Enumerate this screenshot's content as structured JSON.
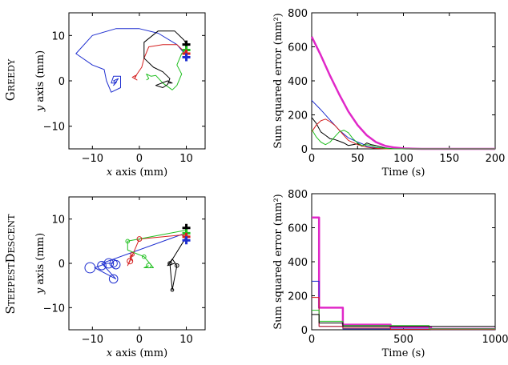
{
  "rows": [
    {
      "label": "Greedy",
      "label_first": "G",
      "label_rest": "REEDY"
    },
    {
      "label": "SteepestDescent",
      "label_first": "S",
      "label_rest": "TEEPEST",
      "label_first2": "D",
      "label_rest2": "ESCENT"
    }
  ],
  "colors": {
    "blue": "#1f2fd0",
    "red": "#d42020",
    "green": "#22c022",
    "black": "#000000",
    "magenta": "#e028c8"
  },
  "chart_data": [
    {
      "id": "greedy-trajectories",
      "type": "line",
      "xlabel_var": "x",
      "xlabel_rest": " axis (mm)",
      "ylabel_var": "y",
      "ylabel_rest": " axis (mm)",
      "xlim": [
        -15,
        14
      ],
      "ylim": [
        -15,
        15
      ],
      "xticks": [
        -10,
        0,
        10
      ],
      "yticks": [
        -10,
        0,
        10
      ],
      "xtick_labels": [
        "−10",
        "0",
        "10"
      ],
      "ytick_labels": [
        "10",
        "0",
        "−10"
      ],
      "series": [
        {
          "color": "blue",
          "points": [
            [
              10,
              5.5
            ],
            [
              8,
              8
            ],
            [
              4,
              10.5
            ],
            [
              0,
              11.5
            ],
            [
              -5,
              11.5
            ],
            [
              -10,
              10
            ],
            [
              -13.5,
              6
            ],
            [
              -10,
              3.5
            ],
            [
              -7.5,
              2.5
            ],
            [
              -7,
              0
            ],
            [
              -6,
              -2.5
            ],
            [
              -4,
              -1.5
            ],
            [
              -4,
              1
            ],
            [
              -5.5,
              1
            ],
            [
              -6,
              -0.5
            ],
            [
              -5,
              -0.5
            ],
            [
              -5.5,
              0
            ],
            [
              -4.5,
              0.5
            ],
            [
              -5.5,
              -1
            ],
            [
              -4.8,
              -0.2
            ]
          ]
        },
        {
          "color": "red",
          "points": [
            [
              10,
              6
            ],
            [
              8,
              8
            ],
            [
              5,
              8
            ],
            [
              2,
              7.5
            ],
            [
              1,
              5
            ],
            [
              0.5,
              3
            ],
            [
              -0.5,
              1.5
            ],
            [
              -1,
              0.5
            ],
            [
              -0.5,
              0.2
            ],
            [
              -1.5,
              0.8
            ],
            [
              -0.8,
              1.2
            ],
            [
              -1,
              0.5
            ]
          ]
        },
        {
          "color": "green",
          "points": [
            [
              10,
              7
            ],
            [
              9,
              6
            ],
            [
              8,
              3.5
            ],
            [
              9,
              1.5
            ],
            [
              8,
              -1
            ],
            [
              7,
              -2
            ],
            [
              5,
              -0.5
            ],
            [
              3.5,
              1.2
            ],
            [
              2.5,
              1
            ],
            [
              1.5,
              1.5
            ],
            [
              2,
              0.5
            ],
            [
              1.5,
              0.2
            ]
          ]
        },
        {
          "color": "black",
          "points": [
            [
              10,
              8
            ],
            [
              9.5,
              9
            ],
            [
              7.5,
              11
            ],
            [
              4,
              11
            ],
            [
              1,
              8.5
            ],
            [
              1,
              5
            ],
            [
              3,
              3
            ],
            [
              5,
              2
            ],
            [
              6.5,
              0.5
            ],
            [
              6,
              -0.8
            ],
            [
              5,
              -1.5
            ],
            [
              3.5,
              -1
            ],
            [
              6,
              0
            ],
            [
              7,
              -0.5
            ],
            [
              6.2,
              -0.5
            ]
          ]
        }
      ],
      "start_markers": [
        {
          "color": "black",
          "x": 10,
          "y": 8
        },
        {
          "color": "green",
          "x": 10,
          "y": 6.8
        },
        {
          "color": "red",
          "x": 10,
          "y": 6
        },
        {
          "color": "blue",
          "x": 10,
          "y": 5.2
        }
      ]
    },
    {
      "id": "greedy-error",
      "type": "line",
      "xlabel": "Time (s)",
      "ylabel": "Sum squared error (mm²)",
      "xlim": [
        0,
        200
      ],
      "ylim": [
        0,
        800
      ],
      "xticks": [
        0,
        50,
        100,
        150,
        200
      ],
      "yticks": [
        0,
        200,
        400,
        600,
        800
      ],
      "series": [
        {
          "color": "magenta",
          "width": 2.5,
          "points": [
            [
              0,
              660
            ],
            [
              10,
              550
            ],
            [
              20,
              430
            ],
            [
              30,
              320
            ],
            [
              40,
              220
            ],
            [
              50,
              140
            ],
            [
              60,
              80
            ],
            [
              70,
              40
            ],
            [
              80,
              18
            ],
            [
              90,
              8
            ],
            [
              100,
              3
            ],
            [
              110,
              1
            ],
            [
              120,
              0
            ],
            [
              200,
              0
            ]
          ]
        },
        {
          "color": "blue",
          "points": [
            [
              0,
              285
            ],
            [
              10,
              230
            ],
            [
              20,
              170
            ],
            [
              30,
              110
            ],
            [
              40,
              65
            ],
            [
              50,
              40
            ],
            [
              55,
              30
            ],
            [
              60,
              15
            ],
            [
              70,
              5
            ],
            [
              80,
              1
            ],
            [
              90,
              0
            ],
            [
              200,
              0
            ]
          ]
        },
        {
          "color": "black",
          "points": [
            [
              0,
              185
            ],
            [
              5,
              150
            ],
            [
              10,
              100
            ],
            [
              15,
              80
            ],
            [
              20,
              60
            ],
            [
              25,
              55
            ],
            [
              30,
              45
            ],
            [
              35,
              35
            ],
            [
              40,
              20
            ],
            [
              45,
              25
            ],
            [
              50,
              30
            ],
            [
              55,
              15
            ],
            [
              60,
              35
            ],
            [
              65,
              25
            ],
            [
              70,
              20
            ],
            [
              80,
              5
            ],
            [
              90,
              0
            ],
            [
              200,
              0
            ]
          ]
        },
        {
          "color": "red",
          "points": [
            [
              0,
              100
            ],
            [
              5,
              140
            ],
            [
              10,
              165
            ],
            [
              15,
              175
            ],
            [
              20,
              160
            ],
            [
              25,
              140
            ],
            [
              30,
              110
            ],
            [
              35,
              80
            ],
            [
              40,
              50
            ],
            [
              50,
              25
            ],
            [
              60,
              10
            ],
            [
              70,
              3
            ],
            [
              80,
              0
            ],
            [
              200,
              0
            ]
          ]
        },
        {
          "color": "green",
          "points": [
            [
              0,
              115
            ],
            [
              5,
              70
            ],
            [
              10,
              40
            ],
            [
              15,
              25
            ],
            [
              20,
              40
            ],
            [
              25,
              70
            ],
            [
              30,
              100
            ],
            [
              35,
              110
            ],
            [
              40,
              95
            ],
            [
              45,
              60
            ],
            [
              50,
              35
            ],
            [
              55,
              20
            ],
            [
              60,
              25
            ],
            [
              65,
              20
            ],
            [
              70,
              10
            ],
            [
              80,
              3
            ],
            [
              90,
              0
            ],
            [
              200,
              0
            ]
          ]
        }
      ]
    },
    {
      "id": "steepest-trajectories",
      "type": "line",
      "xlabel_var": "x",
      "xlabel_rest": " axis (mm)",
      "ylabel_var": "y",
      "ylabel_rest": " axis (mm)",
      "xlim": [
        -15,
        14
      ],
      "ylim": [
        -15,
        15
      ],
      "xticks": [
        -10,
        0,
        10
      ],
      "yticks": [
        -10,
        0,
        10
      ],
      "xtick_labels": [
        "−10",
        "0",
        "10"
      ],
      "ytick_labels": [
        "10",
        "0",
        "−10"
      ],
      "series": [
        {
          "color": "blue",
          "points": [
            [
              10,
              5.5
            ],
            [
              9,
              6.5
            ],
            [
              -8,
              0
            ],
            [
              -5,
              -3.5
            ],
            [
              -9.5,
              -1
            ],
            [
              -7,
              0
            ],
            [
              -6.5,
              0
            ],
            [
              -5.5,
              0
            ]
          ]
        },
        {
          "color": "red",
          "points": [
            [
              10,
              6.5
            ],
            [
              0,
              5.5
            ],
            [
              -2,
              0.5
            ],
            [
              -2.5,
              -0.5
            ],
            [
              -1.5,
              2
            ],
            [
              -2,
              1.5
            ],
            [
              -1.5,
              0.5
            ]
          ]
        },
        {
          "color": "green",
          "points": [
            [
              10,
              7.5
            ],
            [
              -2.5,
              5
            ],
            [
              -2.5,
              3
            ],
            [
              1,
              1.5
            ],
            [
              3,
              -1
            ],
            [
              1,
              -1
            ],
            [
              2,
              -0.5
            ]
          ]
        },
        {
          "color": "black",
          "points": [
            [
              10,
              8
            ],
            [
              10,
              6
            ],
            [
              6.5,
              0
            ],
            [
              7,
              -6
            ],
            [
              8,
              -0.5
            ],
            [
              7,
              1
            ],
            [
              6,
              -0.5
            ],
            [
              7.5,
              0
            ]
          ]
        }
      ],
      "circles": [
        {
          "color": "blue",
          "x": -10.5,
          "y": -1,
          "r": 1.1
        },
        {
          "color": "blue",
          "x": -8,
          "y": -0.5,
          "r": 0.9
        },
        {
          "color": "blue",
          "x": -6.5,
          "y": 0,
          "r": 1.0
        },
        {
          "color": "blue",
          "x": -5.5,
          "y": 0,
          "r": 0.8
        },
        {
          "color": "blue",
          "x": -5,
          "y": -0.3,
          "r": 0.9
        },
        {
          "color": "blue",
          "x": -5.5,
          "y": -3.5,
          "r": 0.9
        },
        {
          "color": "red",
          "x": 0,
          "y": 5.5,
          "r": 0.5
        },
        {
          "color": "red",
          "x": -2,
          "y": 0.5,
          "r": 0.6
        },
        {
          "color": "red",
          "x": -1.5,
          "y": 2,
          "r": 0.4
        },
        {
          "color": "green",
          "x": -2.5,
          "y": 5,
          "r": 0.4
        },
        {
          "color": "green",
          "x": 1,
          "y": 1.5,
          "r": 0.4
        },
        {
          "color": "green",
          "x": 2,
          "y": -0.5,
          "r": 0.5
        },
        {
          "color": "black",
          "x": 6.5,
          "y": 0,
          "r": 0.4
        },
        {
          "color": "black",
          "x": 7,
          "y": -6,
          "r": 0.3
        },
        {
          "color": "black",
          "x": 8,
          "y": -0.5,
          "r": 0.4
        }
      ],
      "start_markers": [
        {
          "color": "black",
          "x": 10,
          "y": 8
        },
        {
          "color": "green",
          "x": 10,
          "y": 6.8
        },
        {
          "color": "red",
          "x": 10,
          "y": 6
        },
        {
          "color": "blue",
          "x": 10,
          "y": 5.2
        }
      ]
    },
    {
      "id": "steepest-error",
      "type": "line",
      "xlabel": "Time (s)",
      "ylabel": "Sum squared error (mm²)",
      "xlim": [
        0,
        1000
      ],
      "ylim": [
        0,
        800
      ],
      "xticks": [
        0,
        500,
        1000
      ],
      "yticks": [
        0,
        200,
        400,
        600,
        800
      ],
      "series": [
        {
          "color": "magenta",
          "width": 2.5,
          "points": [
            [
              0,
              660
            ],
            [
              40,
              660
            ],
            [
              40,
              130
            ],
            [
              170,
              130
            ],
            [
              170,
              30
            ],
            [
              430,
              30
            ],
            [
              430,
              15
            ],
            [
              650,
              15
            ],
            [
              650,
              5
            ],
            [
              1000,
              5
            ]
          ]
        },
        {
          "color": "blue",
          "points": [
            [
              0,
              285
            ],
            [
              40,
              285
            ],
            [
              40,
              20
            ],
            [
              170,
              20
            ],
            [
              170,
              5
            ],
            [
              1000,
              5
            ]
          ]
        },
        {
          "color": "red",
          "points": [
            [
              0,
              190
            ],
            [
              40,
              190
            ],
            [
              40,
              20
            ],
            [
              170,
              20
            ],
            [
              170,
              10
            ],
            [
              430,
              10
            ],
            [
              430,
              3
            ],
            [
              1000,
              3
            ]
          ]
        },
        {
          "color": "green",
          "points": [
            [
              0,
              115
            ],
            [
              40,
              115
            ],
            [
              40,
              50
            ],
            [
              170,
              50
            ],
            [
              170,
              25
            ],
            [
              640,
              25
            ],
            [
              640,
              5
            ],
            [
              1000,
              5
            ]
          ]
        },
        {
          "color": "black",
          "points": [
            [
              0,
              90
            ],
            [
              40,
              90
            ],
            [
              40,
              40
            ],
            [
              170,
              40
            ],
            [
              170,
              20
            ],
            [
              1000,
              20
            ]
          ]
        }
      ]
    }
  ]
}
